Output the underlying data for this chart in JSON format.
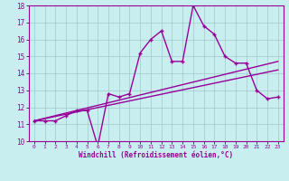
{
  "xlabel": "Windchill (Refroidissement éolien,°C)",
  "xlim": [
    -0.5,
    23.5
  ],
  "ylim": [
    10,
    18
  ],
  "yticks": [
    10,
    11,
    12,
    13,
    14,
    15,
    16,
    17,
    18
  ],
  "xticks": [
    0,
    1,
    2,
    3,
    4,
    5,
    6,
    7,
    8,
    9,
    10,
    11,
    12,
    13,
    14,
    15,
    16,
    17,
    18,
    19,
    20,
    21,
    22,
    23
  ],
  "bg_color": "#c8eef0",
  "grid_color": "#a0c8ca",
  "line_color": "#990099",
  "main_line": {
    "x": [
      0,
      1,
      2,
      3,
      4,
      5,
      6,
      7,
      8,
      9,
      10,
      11,
      12,
      13,
      14,
      15,
      16,
      17,
      18,
      19,
      20,
      21,
      22,
      23
    ],
    "y": [
      11.2,
      11.2,
      11.2,
      11.5,
      11.8,
      11.8,
      9.7,
      12.8,
      12.6,
      12.8,
      15.2,
      16.0,
      16.5,
      14.7,
      14.7,
      18.0,
      16.8,
      16.3,
      15.0,
      14.6,
      14.6,
      13.0,
      12.5,
      12.6
    ]
  },
  "trend1_x": [
    0,
    23
  ],
  "trend1_y": [
    11.2,
    14.7
  ],
  "trend2_x": [
    0,
    23
  ],
  "trend2_y": [
    11.2,
    14.2
  ],
  "linewidth": 1.0,
  "markersize": 2.5
}
